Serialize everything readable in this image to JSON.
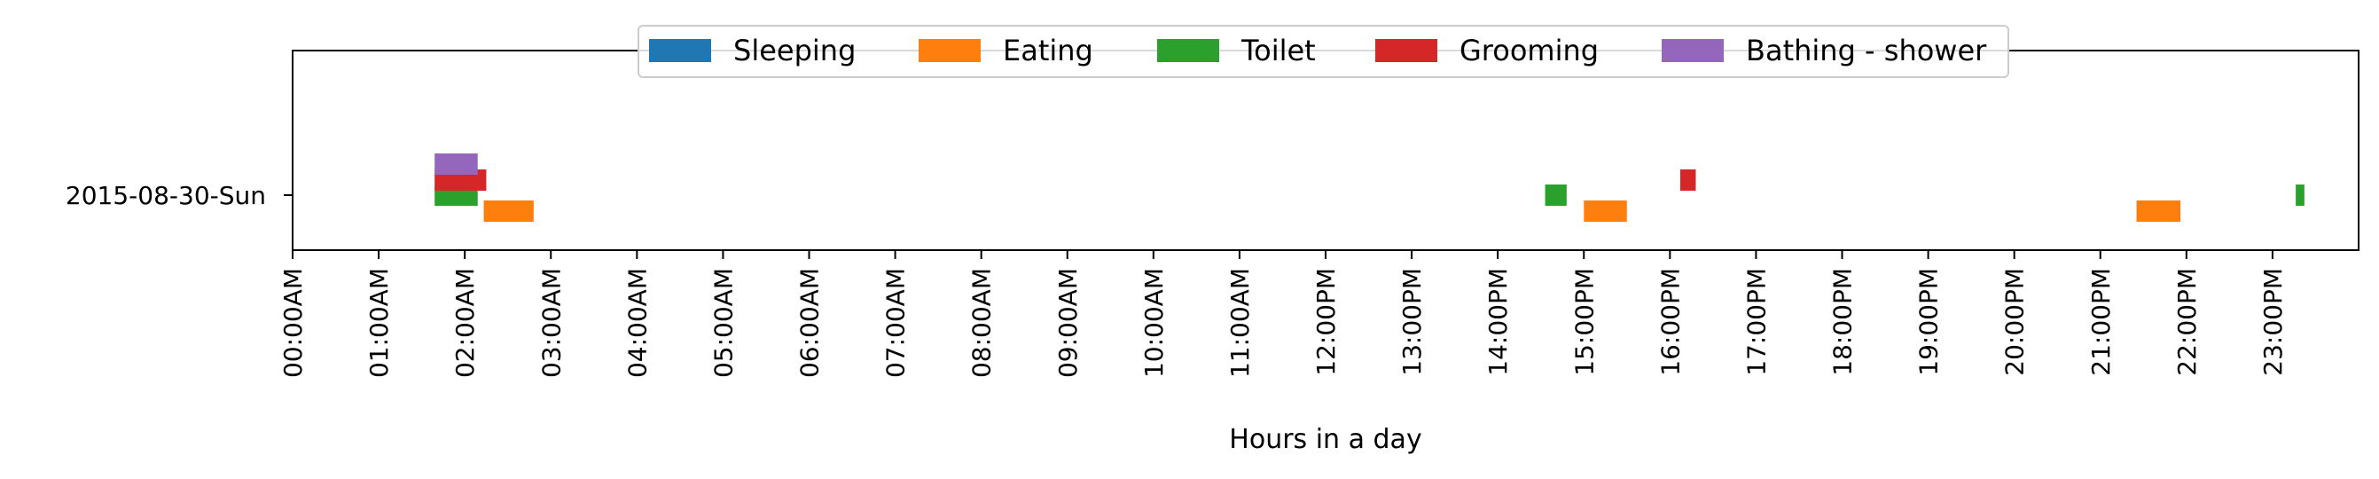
{
  "chart_data": {
    "type": "timeline",
    "title": "",
    "xlabel": "Hours in a day",
    "ylabel": "",
    "x_unit": "hour of day",
    "xlim": [
      0,
      24
    ],
    "x_ticks": [
      {
        "value": 0,
        "label": "00:00AM"
      },
      {
        "value": 1,
        "label": "01:00AM"
      },
      {
        "value": 2,
        "label": "02:00AM"
      },
      {
        "value": 3,
        "label": "03:00AM"
      },
      {
        "value": 4,
        "label": "04:00AM"
      },
      {
        "value": 5,
        "label": "05:00AM"
      },
      {
        "value": 6,
        "label": "06:00AM"
      },
      {
        "value": 7,
        "label": "07:00AM"
      },
      {
        "value": 8,
        "label": "08:00AM"
      },
      {
        "value": 9,
        "label": "09:00AM"
      },
      {
        "value": 10,
        "label": "10:00AM"
      },
      {
        "value": 11,
        "label": "11:00AM"
      },
      {
        "value": 12,
        "label": "12:00PM"
      },
      {
        "value": 13,
        "label": "13:00PM"
      },
      {
        "value": 14,
        "label": "14:00PM"
      },
      {
        "value": 15,
        "label": "15:00PM"
      },
      {
        "value": 16,
        "label": "16:00PM"
      },
      {
        "value": 17,
        "label": "17:00PM"
      },
      {
        "value": 18,
        "label": "18:00PM"
      },
      {
        "value": 19,
        "label": "19:00PM"
      },
      {
        "value": 20,
        "label": "20:00PM"
      },
      {
        "value": 21,
        "label": "21:00PM"
      },
      {
        "value": 22,
        "label": "22:00PM"
      },
      {
        "value": 23,
        "label": "23:00PM"
      }
    ],
    "categories": [
      "2015-08-30-Sun"
    ],
    "grid": false,
    "legend_position": "top-center",
    "series": [
      {
        "name": "Sleeping",
        "color": "#1f77b4",
        "intervals": []
      },
      {
        "name": "Eating",
        "color": "#ff7f0e",
        "intervals": [
          [
            2.22,
            2.8
          ],
          [
            15.0,
            15.35
          ],
          [
            15.27,
            15.5
          ],
          [
            21.42,
            21.93
          ]
        ]
      },
      {
        "name": "Toilet",
        "color": "#2ca02c",
        "intervals": [
          [
            1.65,
            2.15
          ],
          [
            14.55,
            14.8
          ],
          [
            23.27,
            23.37
          ]
        ]
      },
      {
        "name": "Grooming",
        "color": "#d62728",
        "intervals": [
          [
            1.65,
            2.25
          ],
          [
            16.12,
            16.3
          ]
        ]
      },
      {
        "name": "Bathing - shower",
        "color": "#9467bd",
        "intervals": [
          [
            1.65,
            2.15
          ]
        ]
      }
    ]
  }
}
